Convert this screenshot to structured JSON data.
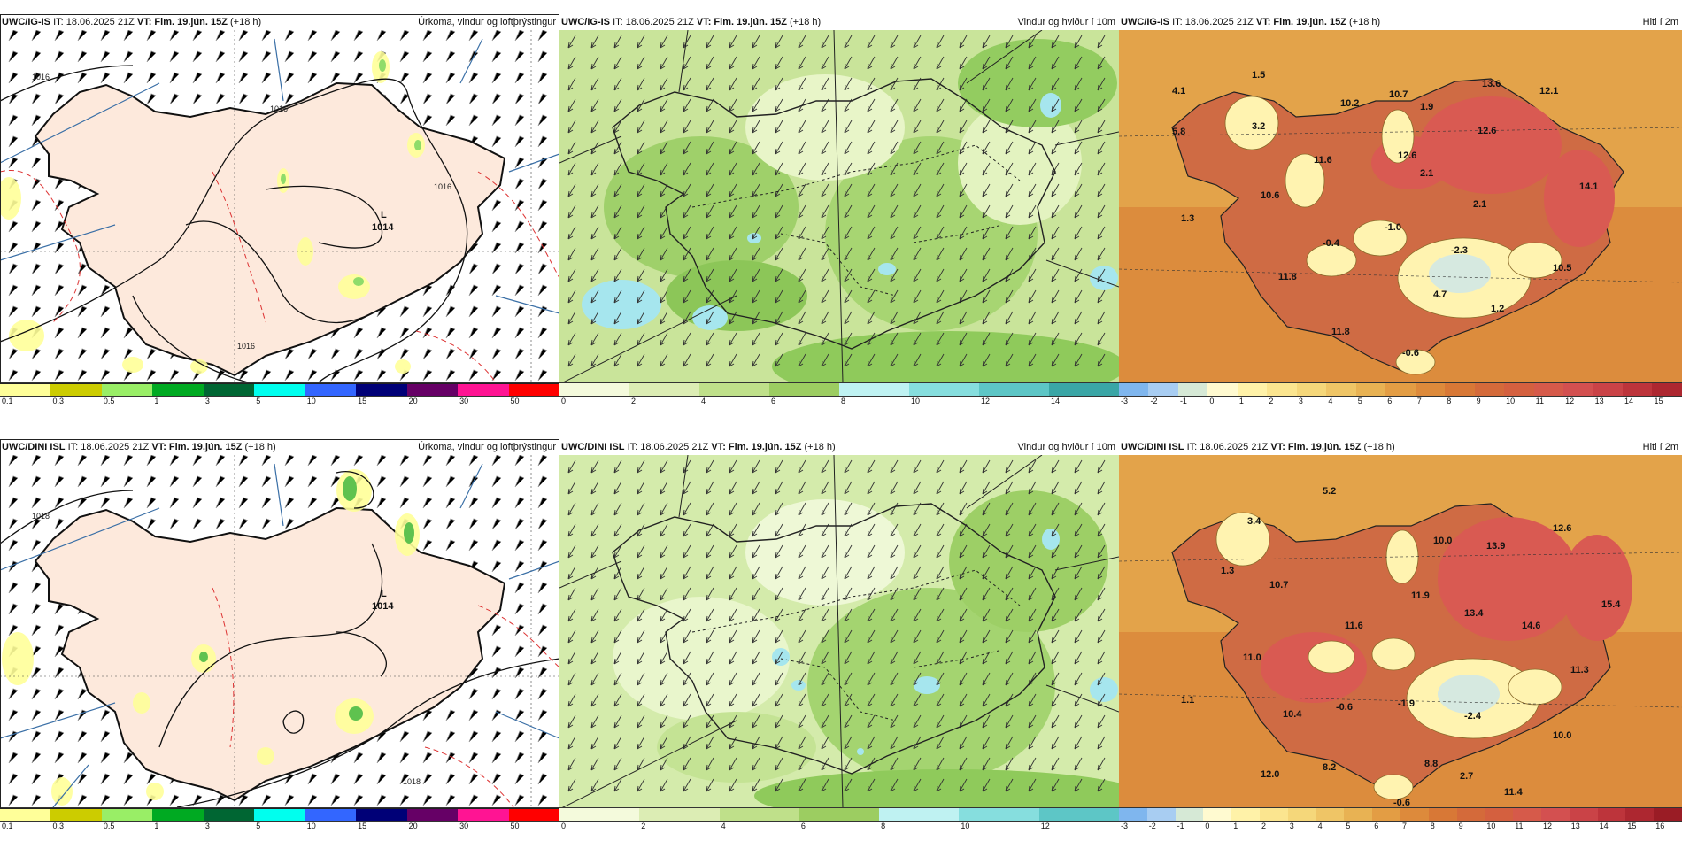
{
  "rows": [
    {
      "model": "UWC/IG-IS",
      "it": "IT: 18.06.2025 21Z",
      "vt": "VT: Fim. 19.jún. 15Z",
      "lead": "(+18 h)",
      "precip_title": "Úrkoma, vindur og loftþrýstingur",
      "wind_title": "Vindur og hviður í 10m",
      "temp_title": "Hiti í 2m",
      "low_label": "L",
      "low_value": "1014",
      "temps": [
        "4.1",
        "1.5",
        "5.8",
        "3.2",
        "10.2",
        "10.7",
        "1.9",
        "13.6",
        "12.1",
        "12.6",
        "12.6",
        "11.6",
        "2.1",
        "14.1",
        "10.6",
        "2.1",
        "1.3",
        "-0.4",
        "-1.0",
        "-2.3",
        "10.5",
        "11.8",
        "4.7",
        "1.2",
        "11.8",
        "-0.6"
      ]
    },
    {
      "model": "UWC/DINI ISL",
      "it": "IT: 18.06.2025 21Z",
      "vt": "VT: Fim. 19.jún. 15Z",
      "lead": "(+18 h)",
      "precip_title": "Úrkoma, vindur og loftþrýstingur",
      "wind_title": "Vindur og hviður í 10m",
      "temp_title": "Hiti í 2m",
      "low_label": "L",
      "low_value": "1014",
      "temps": [
        "5.2",
        "3.4",
        "12.6",
        "10.0",
        "13.9",
        "1.3",
        "10.7",
        "11.9",
        "15.4",
        "13.4",
        "11.6",
        "14.6",
        "11.0",
        "11.3",
        "1.1",
        "-0.6",
        "-1.9",
        "10.4",
        "-2.4",
        "10.0",
        "8.2",
        "8.8",
        "12.0",
        "2.7",
        "11.4",
        "-0.6"
      ]
    }
  ],
  "isobars": [
    "1016",
    "1016",
    "1016",
    "1016",
    "1018",
    "1018"
  ],
  "precip_scale": {
    "labels": [
      "0.1",
      "0.3",
      "0.5",
      "1",
      "3",
      "5",
      "10",
      "15",
      "20",
      "30",
      "50"
    ],
    "colors": [
      "#ffff99",
      "#cccc00",
      "#99ee66",
      "#00aa22",
      "#006633",
      "#00ffee",
      "#3366ff",
      "#000077",
      "#660066",
      "#ff1493",
      "#ff0000"
    ]
  },
  "wind_scale_top": {
    "labels": [
      "0",
      "2",
      "4",
      "6",
      "8",
      "10",
      "12",
      "14"
    ],
    "colors": [
      "#f4fadc",
      "#dcedb4",
      "#bfe08a",
      "#9ccd61",
      "#bff2f2",
      "#86dede",
      "#5dc6c6",
      "#3aa6a6"
    ]
  },
  "wind_scale_bottom": {
    "labels": [
      "0",
      "2",
      "4",
      "6",
      "8",
      "10",
      "12"
    ],
    "colors": [
      "#f4fadc",
      "#dcedb4",
      "#bfe08a",
      "#9ccd61",
      "#bff2f2",
      "#86dede",
      "#5dc6c6"
    ]
  },
  "temp_scale_top": {
    "labels": [
      "-3",
      "-2",
      "-1",
      "0",
      "1",
      "2",
      "3",
      "4",
      "5",
      "6",
      "7",
      "8",
      "9",
      "10",
      "11",
      "12",
      "13",
      "14",
      "15"
    ],
    "colors": [
      "#7fb6ee",
      "#a8cdf2",
      "#d6e9d6",
      "#fffad0",
      "#fff2a8",
      "#fbe58f",
      "#f5d77a",
      "#efc566",
      "#e8b253",
      "#e39d44",
      "#dd8a3b",
      "#d87836",
      "#d46a3a",
      "#d4603f",
      "#d65a4a",
      "#d35050",
      "#ca4347",
      "#bd343b",
      "#ad2730"
    ]
  },
  "temp_scale_bottom": {
    "labels": [
      "-3",
      "-2",
      "-1",
      "0",
      "1",
      "2",
      "3",
      "4",
      "5",
      "6",
      "7",
      "8",
      "9",
      "10",
      "11",
      "12",
      "13",
      "14",
      "15",
      "16"
    ],
    "colors": [
      "#7fb6ee",
      "#a8cdf2",
      "#d6e9d6",
      "#fffad0",
      "#fff2a8",
      "#fbe58f",
      "#f5d77a",
      "#efc566",
      "#e8b253",
      "#e39d44",
      "#dd8a3b",
      "#d87836",
      "#d46a3a",
      "#d4603f",
      "#d65a4a",
      "#d35050",
      "#ca4347",
      "#bd343b",
      "#ad2730",
      "#9a1c25"
    ]
  }
}
